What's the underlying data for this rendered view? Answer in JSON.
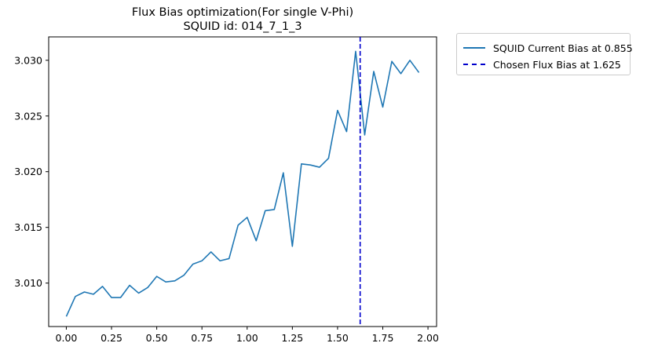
{
  "chart_data": {
    "type": "line",
    "title": "Flux Bias optimization(For single V-Phi)",
    "subtitle": "SQUID id: 014_7_1_3",
    "xlabel": "",
    "ylabel": "",
    "xlim": [
      -0.0975,
      2.0475
    ],
    "ylim": [
      3.0061,
      3.0321
    ],
    "x_ticks": [
      "0.00",
      "0.25",
      "0.50",
      "0.75",
      "1.00",
      "1.25",
      "1.50",
      "1.75",
      "2.00"
    ],
    "y_ticks": [
      "3.010",
      "3.015",
      "3.020",
      "3.025",
      "3.030"
    ],
    "grid": false,
    "legend_position": "outside-top-right",
    "series": [
      {
        "name": "SQUID Current Bias at 0.855",
        "color": "#1f77b4",
        "style": "solid",
        "x": [
          0.0,
          0.05,
          0.1,
          0.15,
          0.2,
          0.25,
          0.3,
          0.35,
          0.4,
          0.45,
          0.5,
          0.55,
          0.6,
          0.65,
          0.7,
          0.75,
          0.8,
          0.85,
          0.9,
          0.95,
          1.0,
          1.05,
          1.1,
          1.15,
          1.2,
          1.25,
          1.3,
          1.35,
          1.4,
          1.45,
          1.5,
          1.55,
          1.6,
          1.65,
          1.7,
          1.75,
          1.8,
          1.85,
          1.9,
          1.95
        ],
        "values": [
          3.007,
          3.0088,
          3.0092,
          3.009,
          3.0097,
          3.0087,
          3.0087,
          3.0098,
          3.0091,
          3.0096,
          3.0106,
          3.0101,
          3.0102,
          3.0107,
          3.0117,
          3.012,
          3.0128,
          3.012,
          3.0122,
          3.0152,
          3.0159,
          3.0138,
          3.0165,
          3.0166,
          3.0199,
          3.0133,
          3.0207,
          3.0206,
          3.0204,
          3.0212,
          3.0255,
          3.0236,
          3.0308,
          3.0233,
          3.029,
          3.0258,
          3.0299,
          3.0288,
          3.03,
          3.0289
        ]
      }
    ],
    "vlines": [
      {
        "name": "Chosen Flux Bias at 1.625",
        "x": 1.625,
        "color": "#0000cc",
        "style": "dashed"
      }
    ]
  }
}
